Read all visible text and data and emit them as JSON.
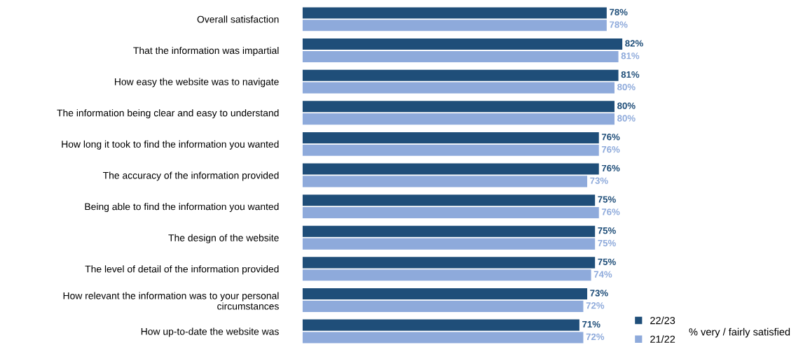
{
  "chart_data": {
    "type": "bar",
    "orientation": "horizontal",
    "categories": [
      "Overall satisfaction",
      "That the information was impartial",
      "How easy the website was to navigate",
      "The information being clear and easy to understand",
      "How long it took to find the information you wanted",
      "The accuracy of the information provided",
      "Being able to find the information you wanted",
      "The design of the website",
      "The level of detail of the information provided",
      "How relevant the information was to your personal\ncircumstances",
      "How up-to-date the website was"
    ],
    "series": [
      {
        "name": "22/23",
        "color": "#1f4e79",
        "values": [
          78,
          82,
          81,
          80,
          76,
          76,
          75,
          75,
          75,
          73,
          71
        ],
        "value_labels": [
          "78%",
          "82%",
          "81%",
          "80%",
          "76%",
          "76%",
          "75%",
          "75%",
          "75%",
          "73%",
          "71%"
        ]
      },
      {
        "name": "21/22",
        "color": "#8eaadb",
        "values": [
          78,
          81,
          80,
          80,
          76,
          73,
          76,
          75,
          74,
          72,
          72
        ],
        "value_labels": [
          "78%",
          "81%",
          "80%",
          "80%",
          "76%",
          "73%",
          "76%",
          "75%",
          "74%",
          "72%",
          "72%"
        ]
      }
    ],
    "tick_labels": "y",
    "legend": "bottom right",
    "grid": false,
    "annotations": [
      "% very / fairly satisfied"
    ]
  }
}
